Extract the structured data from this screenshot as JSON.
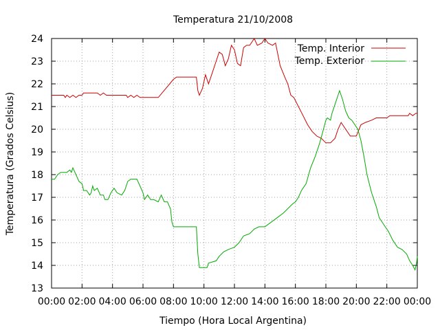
{
  "chart_data": {
    "type": "line",
    "title": "Temperatura 21/10/2008",
    "xlabel": "Tiempo (Hora Local Argentina)",
    "ylabel": "Temperatura (Grados Celsius)",
    "xlim": [
      0,
      24
    ],
    "ylim": [
      13,
      24
    ],
    "x_ticks": [
      {
        "v": 0,
        "label": "00:00"
      },
      {
        "v": 2,
        "label": "02:00"
      },
      {
        "v": 4,
        "label": "04:00"
      },
      {
        "v": 6,
        "label": "06:00"
      },
      {
        "v": 8,
        "label": "08:00"
      },
      {
        "v": 10,
        "label": "10:00"
      },
      {
        "v": 12,
        "label": "12:00"
      },
      {
        "v": 14,
        "label": "14:00"
      },
      {
        "v": 16,
        "label": "16:00"
      },
      {
        "v": 18,
        "label": "18:00"
      },
      {
        "v": 20,
        "label": "20:00"
      },
      {
        "v": 22,
        "label": "22:00"
      },
      {
        "v": 24,
        "label": "00:00"
      }
    ],
    "y_ticks": [
      {
        "v": 13,
        "label": "13"
      },
      {
        "v": 14,
        "label": "14"
      },
      {
        "v": 15,
        "label": "15"
      },
      {
        "v": 16,
        "label": "16"
      },
      {
        "v": 17,
        "label": "17"
      },
      {
        "v": 18,
        "label": "18"
      },
      {
        "v": 19,
        "label": "19"
      },
      {
        "v": 20,
        "label": "20"
      },
      {
        "v": 21,
        "label": "21"
      },
      {
        "v": 22,
        "label": "22"
      },
      {
        "v": 23,
        "label": "23"
      },
      {
        "v": 24,
        "label": "24"
      }
    ],
    "grid": true,
    "legend_position": "top-right",
    "series": [
      {
        "name": "Temp. Interior",
        "color": "#cc0000",
        "points": [
          [
            0,
            21.5
          ],
          [
            0.8,
            21.5
          ],
          [
            0.9,
            21.4
          ],
          [
            1.0,
            21.5
          ],
          [
            1.2,
            21.4
          ],
          [
            1.4,
            21.5
          ],
          [
            1.6,
            21.4
          ],
          [
            1.8,
            21.5
          ],
          [
            2.0,
            21.5
          ],
          [
            2.1,
            21.6
          ],
          [
            3.0,
            21.6
          ],
          [
            3.2,
            21.5
          ],
          [
            3.4,
            21.6
          ],
          [
            3.6,
            21.5
          ],
          [
            4.0,
            21.5
          ],
          [
            4.9,
            21.5
          ],
          [
            5.0,
            21.4
          ],
          [
            5.2,
            21.5
          ],
          [
            5.4,
            21.4
          ],
          [
            5.6,
            21.5
          ],
          [
            5.8,
            21.4
          ],
          [
            6.0,
            21.4
          ],
          [
            7.0,
            21.4
          ],
          [
            7.5,
            21.8
          ],
          [
            8.0,
            22.2
          ],
          [
            8.2,
            22.3
          ],
          [
            9.5,
            22.3
          ],
          [
            9.6,
            21.7
          ],
          [
            9.7,
            21.5
          ],
          [
            9.9,
            21.8
          ],
          [
            10.1,
            22.4
          ],
          [
            10.3,
            22.0
          ],
          [
            10.5,
            22.4
          ],
          [
            10.8,
            23.0
          ],
          [
            11.0,
            23.4
          ],
          [
            11.2,
            23.3
          ],
          [
            11.4,
            22.8
          ],
          [
            11.6,
            23.1
          ],
          [
            11.8,
            23.7
          ],
          [
            12.0,
            23.5
          ],
          [
            12.2,
            22.9
          ],
          [
            12.4,
            22.8
          ],
          [
            12.6,
            23.6
          ],
          [
            12.8,
            23.7
          ],
          [
            13.0,
            23.7
          ],
          [
            13.3,
            24.0
          ],
          [
            13.5,
            23.7
          ],
          [
            13.8,
            23.8
          ],
          [
            14.0,
            24.0
          ],
          [
            14.2,
            23.8
          ],
          [
            14.5,
            23.7
          ],
          [
            14.7,
            23.8
          ],
          [
            15.0,
            22.8
          ],
          [
            15.3,
            22.3
          ],
          [
            15.5,
            22.0
          ],
          [
            15.7,
            21.5
          ],
          [
            15.9,
            21.4
          ],
          [
            16.2,
            21.0
          ],
          [
            16.5,
            20.6
          ],
          [
            16.8,
            20.2
          ],
          [
            17.1,
            19.9
          ],
          [
            17.4,
            19.7
          ],
          [
            17.7,
            19.6
          ],
          [
            18.0,
            19.4
          ],
          [
            18.3,
            19.4
          ],
          [
            18.6,
            19.6
          ],
          [
            18.8,
            20.0
          ],
          [
            19.0,
            20.3
          ],
          [
            19.3,
            20.0
          ],
          [
            19.6,
            19.7
          ],
          [
            20.0,
            19.7
          ],
          [
            20.3,
            20.2
          ],
          [
            20.6,
            20.3
          ],
          [
            21.0,
            20.4
          ],
          [
            21.3,
            20.5
          ],
          [
            21.6,
            20.5
          ],
          [
            22.0,
            20.5
          ],
          [
            22.2,
            20.6
          ],
          [
            23.0,
            20.6
          ],
          [
            23.4,
            20.6
          ],
          [
            23.5,
            20.7
          ],
          [
            23.7,
            20.6
          ],
          [
            23.9,
            20.7
          ],
          [
            24.0,
            20.7
          ]
        ]
      },
      {
        "name": "Temp. Exterior",
        "color": "#00aa00",
        "points": [
          [
            0,
            17.8
          ],
          [
            0.2,
            17.8
          ],
          [
            0.4,
            18.0
          ],
          [
            0.6,
            18.1
          ],
          [
            1.0,
            18.1
          ],
          [
            1.2,
            18.2
          ],
          [
            1.3,
            18.1
          ],
          [
            1.4,
            18.3
          ],
          [
            1.6,
            18.0
          ],
          [
            1.8,
            17.7
          ],
          [
            2.0,
            17.6
          ],
          [
            2.1,
            17.3
          ],
          [
            2.3,
            17.3
          ],
          [
            2.5,
            17.1
          ],
          [
            2.6,
            17.2
          ],
          [
            2.7,
            17.5
          ],
          [
            2.8,
            17.3
          ],
          [
            3.0,
            17.4
          ],
          [
            3.2,
            17.1
          ],
          [
            3.4,
            17.1
          ],
          [
            3.5,
            16.9
          ],
          [
            3.7,
            16.9
          ],
          [
            3.9,
            17.2
          ],
          [
            4.1,
            17.4
          ],
          [
            4.3,
            17.2
          ],
          [
            4.6,
            17.1
          ],
          [
            4.8,
            17.3
          ],
          [
            5.0,
            17.7
          ],
          [
            5.2,
            17.8
          ],
          [
            5.6,
            17.8
          ],
          [
            5.8,
            17.5
          ],
          [
            6.0,
            17.2
          ],
          [
            6.1,
            16.9
          ],
          [
            6.3,
            17.1
          ],
          [
            6.5,
            16.9
          ],
          [
            6.7,
            16.9
          ],
          [
            7.0,
            16.8
          ],
          [
            7.2,
            17.1
          ],
          [
            7.4,
            16.8
          ],
          [
            7.6,
            16.8
          ],
          [
            7.8,
            16.5
          ],
          [
            7.9,
            15.9
          ],
          [
            8.0,
            15.7
          ],
          [
            9.5,
            15.7
          ],
          [
            9.6,
            14.5
          ],
          [
            9.7,
            13.9
          ],
          [
            10.2,
            13.9
          ],
          [
            10.3,
            14.1
          ],
          [
            10.8,
            14.2
          ],
          [
            11.0,
            14.4
          ],
          [
            11.3,
            14.6
          ],
          [
            11.6,
            14.7
          ],
          [
            12.0,
            14.8
          ],
          [
            12.3,
            15.0
          ],
          [
            12.6,
            15.3
          ],
          [
            13.0,
            15.4
          ],
          [
            13.3,
            15.6
          ],
          [
            13.6,
            15.7
          ],
          [
            14.0,
            15.7
          ],
          [
            14.4,
            15.9
          ],
          [
            14.8,
            16.1
          ],
          [
            15.2,
            16.3
          ],
          [
            15.5,
            16.5
          ],
          [
            15.8,
            16.7
          ],
          [
            16.0,
            16.8
          ],
          [
            16.2,
            17.0
          ],
          [
            16.4,
            17.3
          ],
          [
            16.7,
            17.6
          ],
          [
            17.0,
            18.3
          ],
          [
            17.3,
            18.8
          ],
          [
            17.6,
            19.4
          ],
          [
            17.8,
            19.9
          ],
          [
            18.0,
            20.4
          ],
          [
            18.1,
            20.5
          ],
          [
            18.3,
            20.4
          ],
          [
            18.4,
            20.7
          ],
          [
            18.6,
            21.1
          ],
          [
            18.8,
            21.5
          ],
          [
            18.9,
            21.7
          ],
          [
            19.1,
            21.3
          ],
          [
            19.3,
            20.8
          ],
          [
            19.5,
            20.5
          ],
          [
            19.7,
            20.4
          ],
          [
            19.9,
            20.2
          ],
          [
            20.1,
            20.0
          ],
          [
            20.3,
            19.5
          ],
          [
            20.5,
            18.8
          ],
          [
            20.7,
            18.0
          ],
          [
            21.0,
            17.2
          ],
          [
            21.3,
            16.6
          ],
          [
            21.5,
            16.1
          ],
          [
            21.8,
            15.8
          ],
          [
            22.1,
            15.5
          ],
          [
            22.4,
            15.1
          ],
          [
            22.7,
            14.8
          ],
          [
            23.0,
            14.7
          ],
          [
            23.3,
            14.5
          ],
          [
            23.5,
            14.2
          ],
          [
            23.7,
            14.0
          ],
          [
            23.85,
            13.8
          ],
          [
            23.95,
            14.1
          ],
          [
            24.0,
            14.4
          ]
        ]
      }
    ]
  }
}
